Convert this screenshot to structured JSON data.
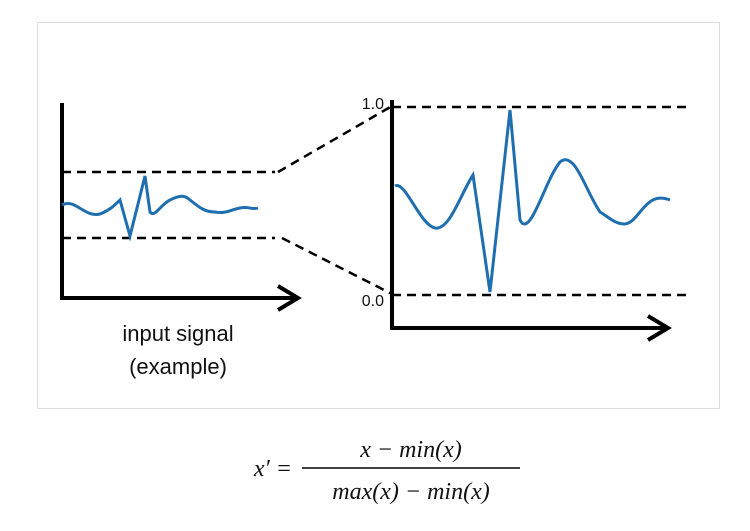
{
  "diagram": {
    "right_axis": {
      "top_label": "1.0",
      "bottom_label": "0.0"
    },
    "left_caption": [
      "input signal",
      "(example)"
    ],
    "formula": {
      "lhs": "x′ =",
      "numerator": "x − min(x)",
      "denominator": "max(x) − min(x)"
    }
  }
}
